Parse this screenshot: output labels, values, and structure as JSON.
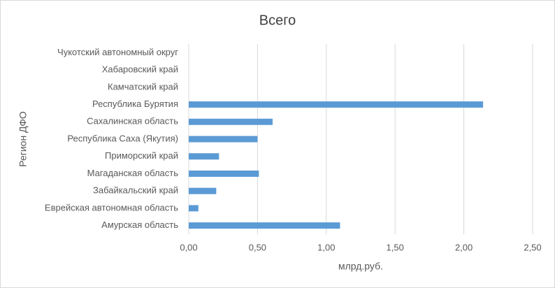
{
  "chart_data": {
    "type": "hbar",
    "title": "Всего",
    "x_label": "млрд.руб.",
    "y_label": "Регион ДФО",
    "categories": [
      "Амурская область",
      "Еврейская автономная область",
      "Забайкальский край",
      "Магаданская область",
      "Приморский край",
      "Республика Саха (Якутия)",
      "Сахалинская область",
      "Республика Бурятия",
      "Камчатский край",
      "Хабаровский край",
      "Чукотский автономный округ"
    ],
    "values": [
      1.1,
      0.07,
      0.2,
      0.51,
      0.22,
      0.5,
      0.61,
      2.14,
      0,
      0,
      0
    ],
    "color": "#5b9bd5",
    "xlim": [
      0,
      2.5
    ],
    "xticks": [
      {
        "value": 0,
        "label": "0,00"
      },
      {
        "value": 0.5,
        "label": "0,50"
      },
      {
        "value": 1,
        "label": "1,00"
      },
      {
        "value": 1.5,
        "label": "1,50"
      },
      {
        "value": 2,
        "label": "2,00"
      },
      {
        "value": 2.5,
        "label": "2,50"
      }
    ],
    "grid": true
  }
}
